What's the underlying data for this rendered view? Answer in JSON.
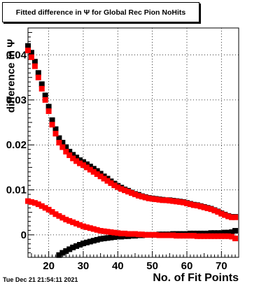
{
  "title": "Fitted difference in  Ψ  for Global Rec Pion NoHits",
  "timestamp": "Tue Dec 21 21:54:11 2021",
  "chart_data": {
    "type": "scatter",
    "title": "Fitted difference in  Ψ  for Global Rec Pion NoHits",
    "xlabel": "No. of Fit Points",
    "ylabel": "difference in  Ψ",
    "xlim": [
      14,
      75
    ],
    "ylim": [
      -0.005,
      0.046
    ],
    "xticks": [
      20,
      30,
      40,
      50,
      60,
      70
    ],
    "xtick_labels": [
      "20",
      "30",
      "40",
      "50",
      "60",
      "70"
    ],
    "yticks": [
      0,
      0.01,
      0.02,
      0.03,
      0.04
    ],
    "ytick_labels": [
      "0",
      "0.01",
      "0.02",
      "0.03",
      "0.04"
    ],
    "grid": true,
    "colors": {
      "black_series": "#000000",
      "red_series": "#ff0000"
    },
    "series": [
      {
        "marker": "square",
        "color": "#000000",
        "points": [
          [
            14,
            0.042
          ],
          [
            15,
            0.0405
          ],
          [
            16,
            0.0385
          ],
          [
            17,
            0.036
          ],
          [
            18,
            0.0335
          ],
          [
            19,
            0.031
          ],
          [
            20,
            0.0285
          ],
          [
            21,
            0.0255
          ],
          [
            22,
            0.0235
          ],
          [
            23,
            0.0215
          ],
          [
            24,
            0.0205
          ],
          [
            25,
            0.0195
          ],
          [
            26,
            0.0185
          ],
          [
            27,
            0.0178
          ],
          [
            28,
            0.0172
          ],
          [
            29,
            0.0166
          ],
          [
            30,
            0.0162
          ],
          [
            31,
            0.0157
          ],
          [
            32,
            0.0152
          ],
          [
            33,
            0.0147
          ],
          [
            34,
            0.0142
          ],
          [
            35,
            0.0136
          ],
          [
            36,
            0.013
          ],
          [
            37,
            0.0125
          ],
          [
            38,
            0.0119
          ],
          [
            39,
            0.0114
          ],
          [
            40,
            0.0109
          ],
          [
            41,
            0.0105
          ],
          [
            42,
            0.0101
          ],
          [
            43,
            0.0098
          ],
          [
            44,
            0.0094
          ],
          [
            45,
            0.0091
          ],
          [
            46,
            0.0089
          ],
          [
            47,
            0.0086
          ],
          [
            48,
            0.0084
          ],
          [
            49,
            0.0082
          ],
          [
            50,
            0.0081
          ],
          [
            51,
            0.008
          ],
          [
            52,
            0.0079
          ],
          [
            53,
            0.0078
          ],
          [
            54,
            0.0077
          ],
          [
            55,
            0.0077
          ],
          [
            56,
            0.0076
          ],
          [
            57,
            0.0075
          ],
          [
            58,
            0.0074
          ],
          [
            59,
            0.0073
          ],
          [
            60,
            0.0071
          ],
          [
            61,
            0.0069
          ],
          [
            62,
            0.0067
          ],
          [
            63,
            0.0066
          ],
          [
            64,
            0.0064
          ],
          [
            65,
            0.0062
          ],
          [
            66,
            0.006
          ],
          [
            67,
            0.0058
          ],
          [
            68,
            0.0055
          ],
          [
            69,
            0.0052
          ],
          [
            70,
            0.0048
          ],
          [
            71,
            0.0045
          ],
          [
            72,
            0.0042
          ],
          [
            73,
            0.004
          ],
          [
            74,
            0.004
          ]
        ]
      },
      {
        "marker": "square",
        "color": "#ff0000",
        "points": [
          [
            14,
            0.041
          ],
          [
            15,
            0.0395
          ],
          [
            16,
            0.0375
          ],
          [
            17,
            0.035
          ],
          [
            18,
            0.0325
          ],
          [
            19,
            0.03
          ],
          [
            20,
            0.0275
          ],
          [
            21,
            0.0245
          ],
          [
            22,
            0.0225
          ],
          [
            23,
            0.0205
          ],
          [
            24,
            0.0195
          ],
          [
            25,
            0.0185
          ],
          [
            26,
            0.0177
          ],
          [
            27,
            0.017
          ],
          [
            28,
            0.0164
          ],
          [
            29,
            0.0159
          ],
          [
            30,
            0.0155
          ],
          [
            31,
            0.015
          ],
          [
            32,
            0.0145
          ],
          [
            33,
            0.014
          ],
          [
            34,
            0.0135
          ],
          [
            35,
            0.013
          ],
          [
            36,
            0.0125
          ],
          [
            37,
            0.012
          ],
          [
            38,
            0.0115
          ],
          [
            39,
            0.011
          ],
          [
            40,
            0.0106
          ],
          [
            41,
            0.0102
          ],
          [
            42,
            0.0099
          ],
          [
            43,
            0.0096
          ],
          [
            44,
            0.0093
          ],
          [
            45,
            0.009
          ],
          [
            46,
            0.0087
          ],
          [
            47,
            0.0085
          ],
          [
            48,
            0.0083
          ],
          [
            49,
            0.0081
          ],
          [
            50,
            0.008
          ],
          [
            51,
            0.0079
          ],
          [
            52,
            0.0078
          ],
          [
            53,
            0.0077
          ],
          [
            54,
            0.0077
          ],
          [
            55,
            0.0076
          ],
          [
            56,
            0.0075
          ],
          [
            57,
            0.0074
          ],
          [
            58,
            0.0073
          ],
          [
            59,
            0.0072
          ],
          [
            60,
            0.007
          ],
          [
            61,
            0.0068
          ],
          [
            62,
            0.0066
          ],
          [
            63,
            0.0065
          ],
          [
            64,
            0.0063
          ],
          [
            65,
            0.0061
          ],
          [
            66,
            0.0059
          ],
          [
            67,
            0.0057
          ],
          [
            68,
            0.0054
          ],
          [
            69,
            0.0051
          ],
          [
            70,
            0.0047
          ],
          [
            71,
            0.0044
          ],
          [
            72,
            0.0041
          ],
          [
            73,
            0.0039
          ],
          [
            74,
            0.0039
          ]
        ]
      },
      {
        "marker": "square",
        "color": "#000000",
        "points": [
          [
            23,
            -0.0045
          ],
          [
            24,
            -0.004
          ],
          [
            25,
            -0.0036
          ],
          [
            26,
            -0.0032
          ],
          [
            27,
            -0.0028
          ],
          [
            28,
            -0.0025
          ],
          [
            29,
            -0.0022
          ],
          [
            30,
            -0.0019
          ],
          [
            31,
            -0.0017
          ],
          [
            32,
            -0.0015
          ],
          [
            33,
            -0.0013
          ],
          [
            34,
            -0.0011
          ],
          [
            35,
            -0.0009
          ],
          [
            36,
            -0.0008
          ],
          [
            37,
            -0.0007
          ],
          [
            38,
            -0.0006
          ],
          [
            39,
            -0.0005
          ],
          [
            40,
            -0.0004
          ],
          [
            41,
            -0.0004
          ],
          [
            42,
            -0.0003
          ],
          [
            43,
            -0.0003
          ],
          [
            44,
            -0.0002
          ],
          [
            45,
            -0.0002
          ],
          [
            46,
            -0.0001
          ],
          [
            47,
            -0.0001
          ],
          [
            48,
            0.0
          ],
          [
            49,
            0.0
          ],
          [
            50,
            0.0
          ],
          [
            51,
            0.0
          ],
          [
            52,
            0.0001
          ],
          [
            53,
            0.0001
          ],
          [
            54,
            0.0001
          ],
          [
            55,
            0.0001
          ],
          [
            56,
            0.0002
          ],
          [
            57,
            0.0002
          ],
          [
            58,
            0.0002
          ],
          [
            59,
            0.0002
          ],
          [
            60,
            0.0002
          ],
          [
            61,
            0.0003
          ],
          [
            62,
            0.0003
          ],
          [
            63,
            0.0003
          ],
          [
            64,
            0.0003
          ],
          [
            65,
            0.0003
          ],
          [
            66,
            0.0003
          ],
          [
            67,
            0.0004
          ],
          [
            68,
            0.0004
          ],
          [
            69,
            0.0004
          ],
          [
            70,
            0.0004
          ],
          [
            71,
            0.0005
          ],
          [
            72,
            0.0005
          ],
          [
            73,
            0.0006
          ],
          [
            74,
            0.0009
          ]
        ]
      },
      {
        "marker": "square",
        "color": "#ff0000",
        "points": [
          [
            14,
            0.0075
          ],
          [
            15,
            0.0073
          ],
          [
            16,
            0.0071
          ],
          [
            17,
            0.0068
          ],
          [
            18,
            0.0064
          ],
          [
            19,
            0.006
          ],
          [
            20,
            0.0056
          ],
          [
            21,
            0.0051
          ],
          [
            22,
            0.0046
          ],
          [
            23,
            0.0042
          ],
          [
            24,
            0.0038
          ],
          [
            25,
            0.0034
          ],
          [
            26,
            0.0031
          ],
          [
            27,
            0.0028
          ],
          [
            28,
            0.0025
          ],
          [
            29,
            0.0022
          ],
          [
            30,
            0.0019
          ],
          [
            31,
            0.0017
          ],
          [
            32,
            0.0015
          ],
          [
            33,
            0.0013
          ],
          [
            34,
            0.0011
          ],
          [
            35,
            0.0009
          ],
          [
            36,
            0.0008
          ],
          [
            37,
            0.0007
          ],
          [
            38,
            0.0006
          ],
          [
            39,
            0.0005
          ],
          [
            40,
            0.0004
          ],
          [
            41,
            0.0003
          ],
          [
            42,
            0.0003
          ],
          [
            43,
            0.0002
          ],
          [
            44,
            0.0002
          ],
          [
            45,
            0.0002
          ],
          [
            46,
            0.0001
          ],
          [
            47,
            0.0001
          ],
          [
            48,
            0.0
          ],
          [
            49,
            0.0
          ],
          [
            50,
            0.0
          ],
          [
            51,
            0.0
          ],
          [
            52,
            -0.0001
          ],
          [
            53,
            -0.0001
          ],
          [
            54,
            -0.0001
          ],
          [
            55,
            -0.0001
          ],
          [
            56,
            -0.0001
          ],
          [
            57,
            -0.0002
          ],
          [
            58,
            -0.0002
          ],
          [
            59,
            -0.0002
          ],
          [
            60,
            -0.0002
          ],
          [
            61,
            -0.0002
          ],
          [
            62,
            -0.0002
          ],
          [
            63,
            -0.0003
          ],
          [
            64,
            -0.0003
          ],
          [
            65,
            -0.0003
          ],
          [
            66,
            -0.0003
          ],
          [
            67,
            -0.0003
          ],
          [
            68,
            -0.0003
          ],
          [
            69,
            -0.0003
          ],
          [
            70,
            -0.0003
          ],
          [
            71,
            -0.0003
          ],
          [
            72,
            -0.0003
          ],
          [
            73,
            -0.0004
          ],
          [
            74,
            -0.0008
          ]
        ]
      }
    ]
  }
}
